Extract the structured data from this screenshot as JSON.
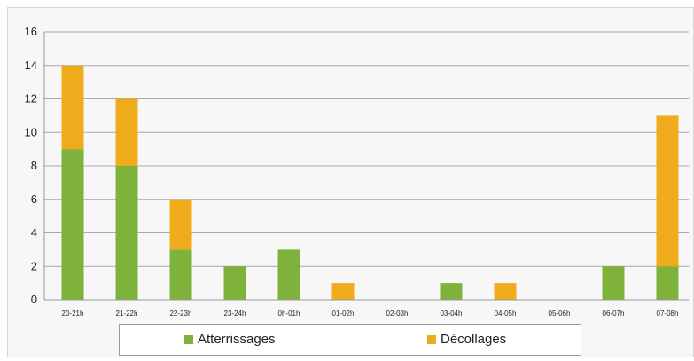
{
  "chart_data": {
    "type": "bar",
    "stacked": true,
    "categories": [
      "20-21h",
      "21-22h",
      "22-23h",
      "23-24h",
      "0h-01h",
      "01-02h",
      "02-03h",
      "03-04h",
      "04-05h",
      "05-06h",
      "06-07h",
      "07-08h"
    ],
    "series": [
      {
        "name": "Atterrissages",
        "color": "#7fb23a",
        "values": [
          9,
          8,
          3,
          2,
          3,
          0,
          0,
          1,
          0,
          0,
          2,
          2
        ]
      },
      {
        "name": "Décollages",
        "color": "#f0ab1d",
        "values": [
          5,
          4,
          3,
          0,
          0,
          1,
          0,
          0,
          1,
          0,
          0,
          9
        ]
      }
    ],
    "yticks": [
      "0",
      "2",
      "4",
      "6",
      "8",
      "10",
      "12",
      "14",
      "16"
    ],
    "ylim": [
      0,
      16
    ],
    "grid": true,
    "legend_position": "bottom",
    "title": "",
    "xlabel": "",
    "ylabel": ""
  }
}
